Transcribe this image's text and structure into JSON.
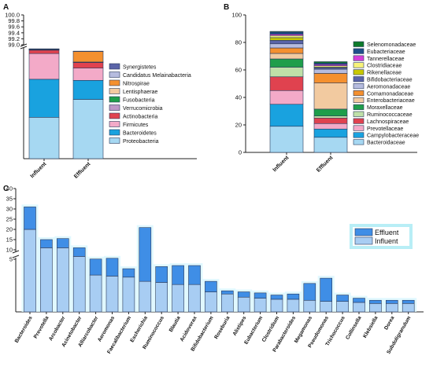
{
  "panels": {
    "a": {
      "label": "A"
    },
    "b": {
      "label": "B"
    },
    "c": {
      "label": "C"
    }
  },
  "chart_data": [
    {
      "id": "A",
      "type": "bar",
      "stacked": true,
      "categories": [
        "Influent",
        "Effluent"
      ],
      "ylim_lower": [
        0,
        99.0
      ],
      "ylim_upper": [
        99.0,
        100.0
      ],
      "axis_break": true,
      "yticks_lower": [],
      "yticks_upper": [
        "99.0",
        "99.2",
        "99.4",
        "99.6",
        "99.8",
        "100.0"
      ],
      "legend_placement": "right",
      "series": [
        {
          "name": "Proteobacteria",
          "color": "#a6d8f2",
          "values": [
            37,
            53
          ]
        },
        {
          "name": "Bacteroidetes",
          "color": "#19a2df",
          "values": [
            34,
            17
          ]
        },
        {
          "name": "Firmicutes",
          "color": "#f3aac8",
          "values": [
            23,
            11
          ]
        },
        {
          "name": "Actinobacteria",
          "color": "#e0424f",
          "values": [
            3,
            5
          ]
        },
        {
          "name": "Verrucomicrobia",
          "color": "#bd97c7",
          "values": [
            0.3,
            0.2
          ]
        },
        {
          "name": "Fusobacteria",
          "color": "#1e9e4a",
          "values": [
            0.4,
            0.1
          ]
        },
        {
          "name": "Lentisphaerae",
          "color": "#f2caa0",
          "values": [
            0.1,
            0.1
          ]
        },
        {
          "name": "Nitrospirae",
          "color": "#f4902f",
          "values": [
            0.1,
            9.5
          ]
        },
        {
          "name": "Candidatus Melainabacteria",
          "color": "#b6bcdf",
          "values": [
            0.2,
            0.1
          ]
        },
        {
          "name": "Synergistetes",
          "color": "#5a64a8",
          "values": [
            0.1,
            0.1
          ]
        }
      ]
    },
    {
      "id": "B",
      "type": "bar",
      "stacked": true,
      "categories": [
        "Influent",
        "Effluent"
      ],
      "ylim": [
        0,
        100
      ],
      "yticks": [
        "0",
        "20",
        "40",
        "60",
        "80",
        "100"
      ],
      "legend_placement": "right",
      "series": [
        {
          "name": "Bacteroidaceae",
          "color": "#a6d8f2",
          "values": [
            19,
            11
          ]
        },
        {
          "name": "Campylobacteraceae",
          "color": "#19a2df",
          "values": [
            16,
            6
          ]
        },
        {
          "name": "Prevotellaceae",
          "color": "#f3aac8",
          "values": [
            10,
            4
          ]
        },
        {
          "name": "Lachnospiraceae",
          "color": "#e0424f",
          "values": [
            10,
            4
          ]
        },
        {
          "name": "Ruminococcaceae",
          "color": "#bfe0a8",
          "values": [
            7,
            1.5
          ]
        },
        {
          "name": "Moraxellaceae",
          "color": "#1e9e4a",
          "values": [
            6,
            5
          ]
        },
        {
          "name": "Enterobacteriaceae",
          "color": "#f2caa0",
          "values": [
            4,
            19
          ]
        },
        {
          "name": "Comamonadaceae",
          "color": "#f4902f",
          "values": [
            4,
            7
          ]
        },
        {
          "name": "Aeromonadaceae",
          "color": "#b6bcdf",
          "values": [
            3,
            3
          ]
        },
        {
          "name": "Bifidobacteriaceae",
          "color": "#5a64a8",
          "values": [
            2.5,
            1
          ]
        },
        {
          "name": "Rikenellaceae",
          "color": "#c9c800",
          "values": [
            2,
            0.5
          ]
        },
        {
          "name": "Clostridiaceae",
          "color": "#f7f27a",
          "values": [
            1.5,
            1
          ]
        },
        {
          "name": "Tannerellaceae",
          "color": "#d43fd8",
          "values": [
            1,
            1
          ]
        },
        {
          "name": "Eubacteriaceae",
          "color": "#1f4f8a",
          "values": [
            1.5,
            1
          ]
        },
        {
          "name": "Selenomonadaceae",
          "color": "#0d7a2a",
          "values": [
            0.5,
            1
          ]
        }
      ]
    },
    {
      "id": "C",
      "type": "bar",
      "stacked": true,
      "axis_break": true,
      "ylim_lower": [
        0,
        5
      ],
      "ylim_upper": [
        5,
        40
      ],
      "yticks": [
        "5",
        "10",
        "15",
        "20",
        "25",
        "30",
        "35",
        "40"
      ],
      "yticks_lower": [
        "0"
      ],
      "legend_placement": "top-right",
      "categories": [
        "Bacteroides",
        "Prevotella",
        "Arcobacter",
        "Acinetobacter",
        "Alliarcobacter",
        "Aeromonas",
        "Faecalibacterium",
        "Escherichia",
        "Ruminococcus",
        "Blautia",
        "Acidovorax",
        "Bifidobacterium",
        "Roseburia",
        "Alistipes",
        "Eubacterium",
        "Clostridium",
        "Parabacteroides",
        "Megamonas",
        "Pseudomonas",
        "Trichococcus",
        "Collinsella",
        "Klebsiella",
        "Dorea",
        "Subdoligranulum"
      ],
      "series": [
        {
          "name": "Influent",
          "color": "#a8cdf3",
          "values": [
            20,
            11,
            11,
            6.5,
            3.5,
            3.4,
            3.3,
            2.9,
            2.8,
            2.6,
            2.6,
            1.9,
            1.7,
            1.4,
            1.3,
            1.2,
            1.2,
            1.1,
            1.0,
            1.0,
            0.9,
            0.8,
            0.8,
            0.8
          ]
        },
        {
          "name": "Effluent",
          "color": "#3f8ee6",
          "values": [
            11,
            4,
            4.5,
            4.5,
            1.6,
            2.1,
            0.8,
            18,
            1.5,
            1.8,
            1.8,
            1.0,
            0.3,
            0.5,
            0.5,
            0.4,
            0.5,
            1.6,
            2.2,
            0.6,
            0.4,
            0.3,
            0.3,
            0.3
          ]
        }
      ]
    }
  ]
}
